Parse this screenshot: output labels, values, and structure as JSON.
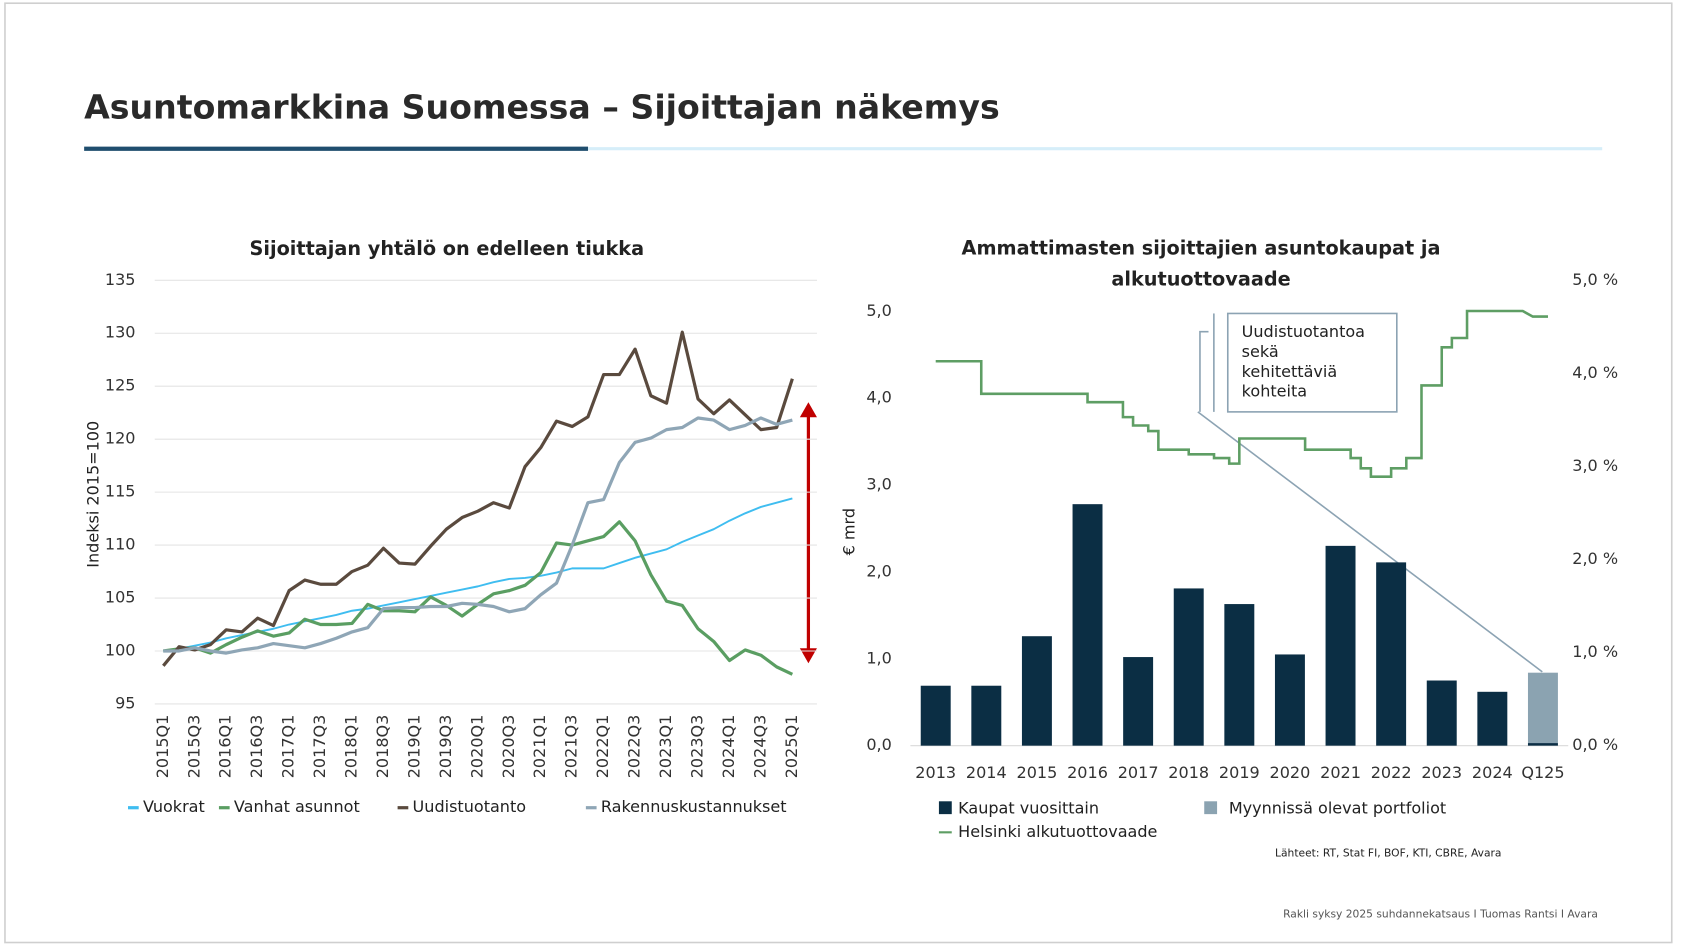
{
  "title": "Asuntomarkkina Suomessa – Sijoittajan näkemys",
  "source": "Lähteet: RT, Stat FI, BOF, KTI, CBRE, Avara",
  "footer": "Rakli syksy 2025 suhdannekatsaus I Tuomas Rantsi I Avara",
  "chart_data": [
    {
      "type": "line",
      "title": "Sijoittajan yhtälö on edelleen tiukka",
      "y_label": "Indeksi 2015=100",
      "categories": [
        "2015Q1",
        null,
        "2015Q3",
        null,
        "2016Q1",
        null,
        "2016Q3",
        null,
        "2017Q1",
        null,
        "2017Q3",
        null,
        "2018Q1",
        null,
        "2018Q3",
        null,
        "2019Q1",
        null,
        "2019Q3",
        null,
        "2020Q1",
        null,
        "2020Q3",
        null,
        "2021Q1",
        null,
        "2021Q3",
        null,
        "2022Q1",
        null,
        "2022Q3",
        null,
        "2023Q1",
        null,
        "2023Q3",
        null,
        "2024Q1",
        null,
        "2024Q3",
        null,
        "2025Q1"
      ],
      "ylim": [
        95,
        135
      ],
      "yticks": [
        95,
        100,
        105,
        110,
        115,
        120,
        125,
        130,
        135
      ],
      "grid": true,
      "series": [
        {
          "name": "Vuokrat",
          "color": "#3fbdf0",
          "values": [
            100,
            100.2,
            100.5,
            100.8,
            101.2,
            101.5,
            101.8,
            102.1,
            102.5,
            102.8,
            103.1,
            103.4,
            103.8,
            104.0,
            104.3,
            104.6,
            104.9,
            105.2,
            105.5,
            105.8,
            106.1,
            106.5,
            106.8,
            106.9,
            107.1,
            107.4,
            107.8,
            107.8,
            107.8,
            108.3,
            108.8,
            109.2,
            109.6,
            110.3,
            110.9,
            111.5,
            112.3,
            113.0,
            113.6,
            114.0,
            114.4
          ]
        },
        {
          "name": "Vanhat asunnot",
          "color": "#5a9e62",
          "values": [
            100,
            100.2,
            100.3,
            99.8,
            100.6,
            101.3,
            101.9,
            101.4,
            101.7,
            103.0,
            102.5,
            102.5,
            102.6,
            104.4,
            103.8,
            103.8,
            103.7,
            105.1,
            104.3,
            103.3,
            104.4,
            105.4,
            105.7,
            106.2,
            107.4,
            110.2,
            110.0,
            110.4,
            110.8,
            112.2,
            110.4,
            107.2,
            104.7,
            104.3,
            102.1,
            100.9,
            99.1,
            100.1,
            99.6,
            98.5,
            97.8
          ]
        },
        {
          "name": "Uudistuotanto",
          "color": "#5a4a3e",
          "values": [
            98.6,
            100.4,
            100.1,
            100.6,
            102.0,
            101.8,
            103.1,
            102.4,
            105.7,
            106.7,
            106.3,
            106.3,
            107.5,
            108.1,
            109.7,
            108.3,
            108.2,
            109.9,
            111.5,
            112.6,
            113.2,
            114.0,
            113.5,
            117.4,
            119.2,
            121.7,
            121.2,
            122.1,
            126.1,
            126.1,
            128.5,
            124.1,
            123.4,
            130.1,
            123.8,
            122.4,
            123.7,
            122.3,
            120.9,
            121.1,
            125.7
          ]
        },
        {
          "name": "Rakennuskustannukset",
          "color": "#8fa6b6",
          "values": [
            100,
            100,
            100.3,
            100.0,
            99.8,
            100.1,
            100.3,
            100.7,
            100.5,
            100.3,
            100.7,
            101.2,
            101.8,
            102.2,
            104.0,
            104.1,
            104.1,
            104.2,
            104.2,
            104.5,
            104.4,
            104.2,
            103.7,
            104.0,
            105.3,
            106.4,
            110.0,
            114.0,
            114.3,
            117.8,
            119.7,
            120.1,
            120.9,
            121.1,
            122.0,
            121.8,
            120.9,
            121.3,
            122.0,
            121.4,
            121.8
          ]
        }
      ]
    },
    {
      "type": "bar",
      "stacked": true,
      "title": "Ammattimasten sijoittajien asuntokaupat ja alkutuottovaade",
      "y_label": "€ mrd",
      "categories": [
        "2013",
        "2014",
        "2015",
        "2016",
        "2017",
        "2018",
        "2019",
        "2020",
        "2021",
        "2022",
        "2023",
        "2024",
        "Q125"
      ],
      "xlim": [
        2012.5,
        2025.5
      ],
      "ylim": [
        0,
        5
      ],
      "yticks": [
        {
          "value": 0,
          "label": "0,0"
        },
        {
          "value": 1,
          "label": "1,0"
        },
        {
          "value": 2,
          "label": "2,0"
        },
        {
          "value": 3,
          "label": "3,0"
        },
        {
          "value": 4,
          "label": "4,0"
        },
        {
          "value": 5,
          "label": "5,0"
        }
      ],
      "y2lim": [
        0,
        5
      ],
      "y2ticks": [
        {
          "value": 0,
          "label": "0,0 %"
        },
        {
          "value": 1,
          "label": "1,0 %"
        },
        {
          "value": 2,
          "label": "2,0 %"
        },
        {
          "value": 3,
          "label": "3,0 %"
        },
        {
          "value": 4,
          "label": "4,0 %"
        },
        {
          "value": 5,
          "label": "5,0 %"
        }
      ],
      "series": [
        {
          "name": "Kaupat vuosittain",
          "color": "#0b2e44",
          "values": [
            0.69,
            0.69,
            1.26,
            2.78,
            1.02,
            1.81,
            1.63,
            1.05,
            2.3,
            2.11,
            0.75,
            0.62,
            0.03
          ]
        },
        {
          "name": "Myynnissä olevat portfoliot",
          "color": "#8ba3b1",
          "values": [
            null,
            null,
            null,
            null,
            null,
            null,
            null,
            null,
            null,
            null,
            null,
            null,
            0.81
          ]
        },
        {
          "name": "Helsinki alkutuottovaade",
          "type": "line",
          "axis": "y2",
          "color": "#5e9e64",
          "x": [
            2013.0,
            2013.9,
            2013.9,
            2016.0,
            2016.0,
            2016.7,
            2016.7,
            2016.9,
            2016.9,
            2017.2,
            2017.2,
            2017.4,
            2017.4,
            2018.0,
            2018.0,
            2018.5,
            2018.5,
            2018.8,
            2018.8,
            2019.0,
            2019.0,
            2020.3,
            2020.3,
            2021.2,
            2021.2,
            2021.4,
            2021.4,
            2021.6,
            2021.6,
            2022.0,
            2022.0,
            2022.3,
            2022.3,
            2022.6,
            2022.6,
            2023.0,
            2023.0,
            2023.2,
            2023.2,
            2023.5,
            2023.5,
            2024.6,
            2024.8,
            2025.1
          ],
          "values": [
            4.13,
            4.13,
            3.78,
            3.78,
            3.69,
            3.69,
            3.53,
            3.53,
            3.44,
            3.44,
            3.38,
            3.38,
            3.18,
            3.18,
            3.13,
            3.13,
            3.09,
            3.09,
            3.03,
            3.03,
            3.3,
            3.3,
            3.18,
            3.18,
            3.09,
            3.09,
            2.98,
            2.98,
            2.89,
            2.89,
            2.98,
            2.98,
            3.09,
            3.09,
            3.87,
            3.87,
            4.28,
            4.28,
            4.38,
            4.38,
            4.67,
            4.67,
            4.61,
            4.61
          ]
        }
      ],
      "annotation": {
        "lines": [
          "Uudistuotantoa",
          "sekä",
          "kehitettäviä",
          "kohteita"
        ]
      }
    }
  ]
}
